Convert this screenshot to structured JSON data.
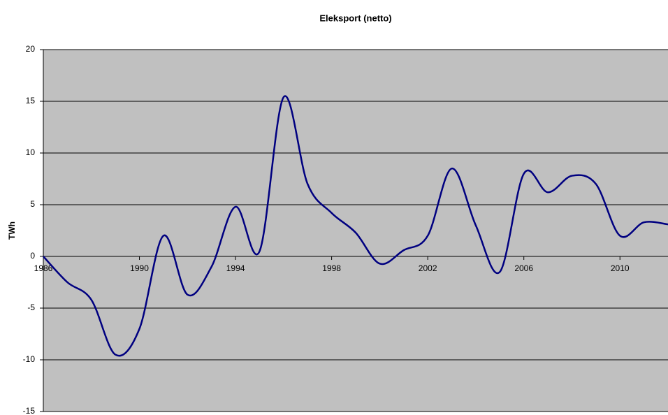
{
  "chart_data": {
    "type": "line",
    "title": "Eleksport (netto)",
    "y_label": "TWh",
    "x": [
      1986,
      1987,
      1988,
      1989,
      1990,
      1991,
      1992,
      1993,
      1994,
      1995,
      1996,
      1997,
      1998,
      1999,
      2000,
      2001,
      2002,
      2003,
      2004,
      2005,
      2006,
      2007,
      2008,
      2009,
      2010,
      2011,
      2012
    ],
    "series": [
      {
        "name": "Eleksport",
        "color": "#000080",
        "values": [
          0,
          -2.5,
          -4.2,
          -9.5,
          -7,
          2,
          -3.7,
          -1,
          4.8,
          0.5,
          15.4,
          7,
          4.2,
          2.3,
          -0.7,
          0.6,
          2,
          8.5,
          3,
          -1.5,
          8,
          6.2,
          7.8,
          7,
          2,
          3.3,
          3.1
        ]
      }
    ],
    "xlim": [
      1986,
      2012
    ],
    "xticks": [
      1986,
      1990,
      1994,
      1998,
      2002,
      2006,
      2010
    ],
    "ylim": [
      -15,
      20
    ],
    "yticks": [
      -15,
      -10,
      -5,
      0,
      5,
      10,
      15,
      20
    ],
    "grid": true,
    "smooth": true,
    "plot_background": "#c0c0c0"
  }
}
